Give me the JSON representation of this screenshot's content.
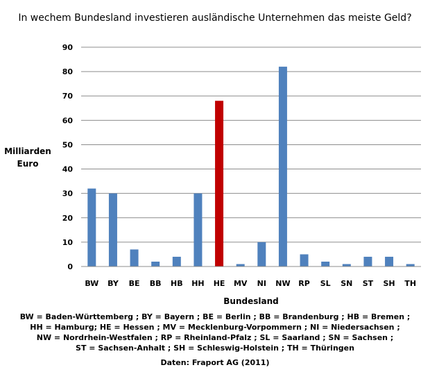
{
  "chart_data": {
    "type": "bar",
    "title": "In wechem Bundesland investieren ausländische Unternehmen das meiste Geld?",
    "xlabel": "Bundesland",
    "ylabel_lines": [
      "Milliarden",
      "Euro"
    ],
    "ylim": [
      0,
      90
    ],
    "yticks": [
      "0",
      "10",
      "20",
      "30",
      "40",
      "50",
      "60",
      "70",
      "80",
      "90"
    ],
    "grid": true,
    "categories": [
      "BW",
      "BY",
      "BE",
      "BB",
      "HB",
      "HH",
      "HE",
      "MV",
      "NI",
      "NW",
      "RP",
      "SL",
      "SN",
      "ST",
      "SH",
      "TH"
    ],
    "values": [
      32,
      30,
      7,
      2,
      4,
      30,
      68,
      1,
      10,
      82,
      5,
      2,
      1,
      4,
      4,
      1
    ],
    "bar_color": "#4f81bd",
    "highlight_color": "#c00000",
    "highlight_category": "HE"
  },
  "legend_lines": [
    "BW = Baden-Württemberg ; BY = Bayern ; BE = Berlin ; BB = Brandenburg ; HB = Bremen ;",
    "HH = Hamburg; HE = Hessen ; MV = Mecklenburg-Vorpommern ; NI = Niedersachsen ;",
    "NW = Nordrhein-Westfalen ; RP = Rheinland-Pfalz ; SL = Saarland ; SN = Sachsen ;",
    "ST = Sachsen-Anhalt ; SH = Schleswig-Holstein ; TH = Thüringen"
  ],
  "source": "Daten: Fraport AG (2011)"
}
